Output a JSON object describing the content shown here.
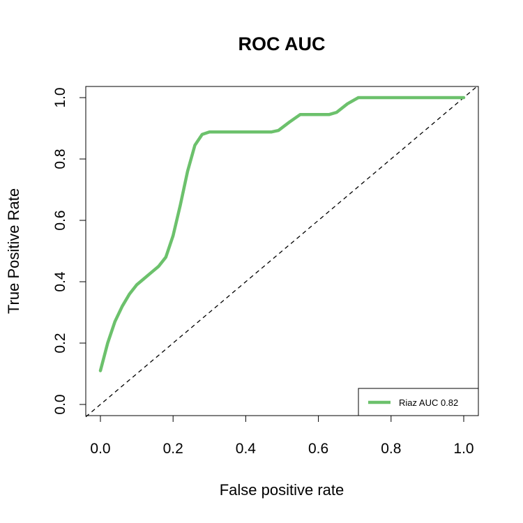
{
  "chart_data": {
    "type": "line",
    "title": "ROC AUC",
    "xlabel": "False positive rate",
    "ylabel": "True Positive Rate",
    "xlim": [
      0,
      1
    ],
    "ylim": [
      0,
      1
    ],
    "x_ticks": [
      "0.0",
      "0.2",
      "0.4",
      "0.6",
      "0.8",
      "1.0"
    ],
    "y_ticks": [
      "0.0",
      "0.2",
      "0.4",
      "0.6",
      "0.8",
      "1.0"
    ],
    "legend_position": "bottom-right",
    "series": [
      {
        "name": "Riaz AUC 0.82",
        "color": "#6cc16c",
        "style": "solid",
        "x": [
          0.0,
          0.02,
          0.04,
          0.06,
          0.08,
          0.1,
          0.12,
          0.14,
          0.16,
          0.18,
          0.2,
          0.22,
          0.24,
          0.26,
          0.28,
          0.3,
          0.35,
          0.4,
          0.47,
          0.49,
          0.52,
          0.55,
          0.6,
          0.63,
          0.65,
          0.68,
          0.71,
          0.8,
          0.9,
          1.0
        ],
        "y": [
          0.11,
          0.2,
          0.27,
          0.32,
          0.36,
          0.39,
          0.41,
          0.43,
          0.45,
          0.48,
          0.55,
          0.65,
          0.76,
          0.845,
          0.88,
          0.888,
          0.888,
          0.888,
          0.888,
          0.893,
          0.92,
          0.945,
          0.945,
          0.945,
          0.952,
          0.98,
          1.0,
          1.0,
          1.0,
          1.0
        ]
      }
    ],
    "reference_line": {
      "name": "chance",
      "x": [
        0,
        1
      ],
      "y": [
        0,
        1
      ],
      "style": "dashed",
      "color": "#000000"
    }
  }
}
